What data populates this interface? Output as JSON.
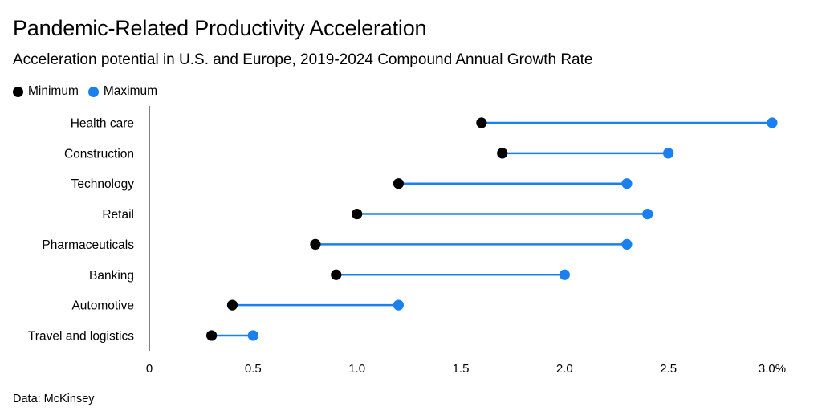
{
  "chart_data": {
    "type": "dot-range",
    "title": "Pandemic-Related Productivity Acceleration",
    "subtitle": "Acceleration potential in U.S. and Europe, 2019-2024 Compound Annual Growth Rate",
    "source": "Data: McKinsey",
    "xlabel": "",
    "ylabel": "",
    "xlim": [
      0,
      3.0
    ],
    "x_ticks": [
      {
        "value": 0,
        "label": "0"
      },
      {
        "value": 0.5,
        "label": "0.5"
      },
      {
        "value": 1.0,
        "label": "1.0"
      },
      {
        "value": 1.5,
        "label": "1.5"
      },
      {
        "value": 2.0,
        "label": "2.0"
      },
      {
        "value": 2.5,
        "label": "2.5"
      },
      {
        "value": 3.0,
        "label": "3.0%"
      }
    ],
    "grid": false,
    "legend_position": "top-left",
    "colors": {
      "minimum": "#000000",
      "maximum": "#1a80f0",
      "connector": "#1a80f0",
      "axis": "#000000"
    },
    "series": [
      {
        "name": "Minimum"
      },
      {
        "name": "Maximum"
      }
    ],
    "categories": [
      "Health care",
      "Construction",
      "Technology",
      "Retail",
      "Pharmaceuticals",
      "Banking",
      "Automotive",
      "Travel and logistics"
    ],
    "min_values": [
      1.6,
      1.7,
      1.2,
      1.0,
      0.8,
      0.9,
      0.4,
      0.3
    ],
    "max_values": [
      3.0,
      2.5,
      2.3,
      2.4,
      2.3,
      2.0,
      1.2,
      0.5
    ]
  }
}
